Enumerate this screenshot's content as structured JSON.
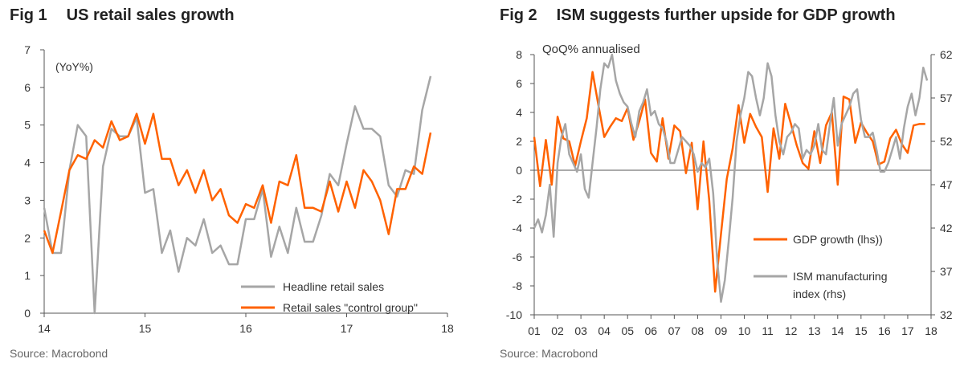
{
  "charts": [
    {
      "fig_number": "Fig 1",
      "title": "US retail sales growth",
      "source": "Source: Macrobond",
      "unit_label": "(YoY%)"
    },
    {
      "fig_number": "Fig 2",
      "title": "ISM suggests further upside for GDP growth",
      "source": "Source: Macrobond",
      "unit_label": "QoQ% annualised"
    }
  ],
  "chart_data": [
    {
      "type": "line",
      "title": "US retail sales growth",
      "ylabel": "(YoY%)",
      "x_range": [
        2014.0,
        2018.0
      ],
      "ylim": [
        0,
        7
      ],
      "y_ticks": [
        0,
        1,
        2,
        3,
        4,
        5,
        6,
        7
      ],
      "x_ticks": [
        {
          "x": 2014,
          "label": "14"
        },
        {
          "x": 2015,
          "label": "15"
        },
        {
          "x": 2016,
          "label": "16"
        },
        {
          "x": 2017,
          "label": "17"
        },
        {
          "x": 2018,
          "label": "18"
        }
      ],
      "grid": false,
      "legend": "bottom-right",
      "series": [
        {
          "name": "Headline retail sales",
          "color": "#a6a6a6",
          "x": [
            2014.0,
            2014.083,
            2014.167,
            2014.25,
            2014.333,
            2014.417,
            2014.5,
            2014.583,
            2014.667,
            2014.75,
            2014.833,
            2014.917,
            2015.0,
            2015.083,
            2015.167,
            2015.25,
            2015.333,
            2015.417,
            2015.5,
            2015.583,
            2015.667,
            2015.75,
            2015.833,
            2015.917,
            2016.0,
            2016.083,
            2016.167,
            2016.25,
            2016.333,
            2016.417,
            2016.5,
            2016.583,
            2016.667,
            2016.75,
            2016.833,
            2016.917,
            2017.0,
            2017.083,
            2017.167,
            2017.25,
            2017.333,
            2017.417,
            2017.5,
            2017.583,
            2017.667,
            2017.75,
            2017.833
          ],
          "values": [
            2.8,
            1.6,
            1.6,
            3.8,
            5.0,
            4.7,
            0.0,
            3.9,
            4.9,
            4.7,
            4.7,
            5.2,
            3.2,
            3.3,
            1.6,
            2.2,
            1.1,
            2.0,
            1.8,
            2.5,
            1.6,
            1.8,
            1.3,
            1.3,
            2.5,
            2.5,
            3.3,
            1.5,
            2.3,
            1.6,
            2.8,
            1.9,
            1.9,
            2.6,
            3.7,
            3.4,
            4.5,
            5.5,
            4.9,
            4.9,
            4.7,
            3.4,
            3.1,
            3.8,
            3.7,
            5.4,
            6.3
          ]
        },
        {
          "name": "Retail sales \"control group\"",
          "color": "#ff6200",
          "x": [
            2014.0,
            2014.083,
            2014.167,
            2014.25,
            2014.333,
            2014.417,
            2014.5,
            2014.583,
            2014.667,
            2014.75,
            2014.833,
            2014.917,
            2015.0,
            2015.083,
            2015.167,
            2015.25,
            2015.333,
            2015.417,
            2015.5,
            2015.583,
            2015.667,
            2015.75,
            2015.833,
            2015.917,
            2016.0,
            2016.083,
            2016.167,
            2016.25,
            2016.333,
            2016.417,
            2016.5,
            2016.583,
            2016.667,
            2016.75,
            2016.833,
            2016.917,
            2017.0,
            2017.083,
            2017.167,
            2017.25,
            2017.333,
            2017.417,
            2017.5,
            2017.583,
            2017.667,
            2017.75,
            2017.833
          ],
          "values": [
            2.2,
            1.6,
            2.7,
            3.8,
            4.2,
            4.1,
            4.6,
            4.4,
            5.1,
            4.6,
            4.7,
            5.3,
            4.5,
            5.3,
            4.1,
            4.1,
            3.4,
            3.8,
            3.2,
            3.8,
            3.0,
            3.3,
            2.6,
            2.4,
            2.9,
            2.8,
            3.4,
            2.4,
            3.5,
            3.4,
            4.2,
            2.8,
            2.8,
            2.7,
            3.5,
            2.7,
            3.5,
            2.8,
            3.8,
            3.5,
            3.0,
            2.1,
            3.3,
            3.3,
            3.9,
            3.7,
            4.8
          ]
        }
      ]
    },
    {
      "type": "line",
      "title": "ISM suggests further upside for GDP growth",
      "ylabel": "QoQ% annualised",
      "x_range": [
        2001.0,
        2018.0
      ],
      "ylim": [
        -10,
        8
      ],
      "y_ticks": [
        -10,
        -8,
        -6,
        -4,
        -2,
        0,
        2,
        4,
        6,
        8
      ],
      "y2lim": [
        32,
        62
      ],
      "y2_ticks": [
        32,
        37,
        42,
        47,
        52,
        57,
        62
      ],
      "x_ticks": [
        {
          "x": 2001,
          "label": "01"
        },
        {
          "x": 2002,
          "label": "02"
        },
        {
          "x": 2003,
          "label": "03"
        },
        {
          "x": 2004,
          "label": "04"
        },
        {
          "x": 2005,
          "label": "05"
        },
        {
          "x": 2006,
          "label": "06"
        },
        {
          "x": 2007,
          "label": "07"
        },
        {
          "x": 2008,
          "label": "08"
        },
        {
          "x": 2009,
          "label": "09"
        },
        {
          "x": 2010,
          "label": "10"
        },
        {
          "x": 2011,
          "label": "11"
        },
        {
          "x": 2012,
          "label": "12"
        },
        {
          "x": 2013,
          "label": "13"
        },
        {
          "x": 2014,
          "label": "14"
        },
        {
          "x": 2015,
          "label": "15"
        },
        {
          "x": 2016,
          "label": "16"
        },
        {
          "x": 2017,
          "label": "17"
        },
        {
          "x": 2018,
          "label": "18"
        }
      ],
      "grid": false,
      "legend": "right",
      "series": [
        {
          "name": "GDP growth (lhs))",
          "axis": "left",
          "color": "#ff6200",
          "x": [
            2001.0,
            2001.25,
            2001.5,
            2001.75,
            2002.0,
            2002.25,
            2002.5,
            2002.75,
            2003.0,
            2003.25,
            2003.5,
            2003.75,
            2004.0,
            2004.25,
            2004.5,
            2004.75,
            2005.0,
            2005.25,
            2005.5,
            2005.75,
            2006.0,
            2006.25,
            2006.5,
            2006.75,
            2007.0,
            2007.25,
            2007.5,
            2007.75,
            2008.0,
            2008.25,
            2008.5,
            2008.75,
            2009.0,
            2009.25,
            2009.5,
            2009.75,
            2010.0,
            2010.25,
            2010.5,
            2010.75,
            2011.0,
            2011.25,
            2011.5,
            2011.75,
            2012.0,
            2012.25,
            2012.5,
            2012.75,
            2013.0,
            2013.25,
            2013.5,
            2013.75,
            2014.0,
            2014.25,
            2014.5,
            2014.75,
            2015.0,
            2015.25,
            2015.5,
            2015.75,
            2016.0,
            2016.25,
            2016.5,
            2016.75,
            2017.0,
            2017.25,
            2017.5,
            2017.75
          ],
          "values": [
            2.3,
            -1.1,
            2.1,
            -1.0,
            3.7,
            2.2,
            2.0,
            0.3,
            2.0,
            3.6,
            6.8,
            4.5,
            2.3,
            3.0,
            3.6,
            3.4,
            4.3,
            2.1,
            3.4,
            4.9,
            1.2,
            0.6,
            3.6,
            0.8,
            3.1,
            2.7,
            -0.2,
            1.9,
            -2.7,
            2.0,
            -2.1,
            -8.4,
            -4.4,
            -0.6,
            1.5,
            4.5,
            1.9,
            3.9,
            3.0,
            2.3,
            -1.5,
            2.9,
            0.8,
            4.6,
            3.2,
            1.7,
            0.5,
            0.1,
            2.7,
            0.5,
            3.1,
            4.0,
            -1.0,
            5.1,
            4.9,
            1.9,
            3.3,
            2.6,
            2.0,
            0.4,
            0.6,
            2.2,
            2.8,
            1.8,
            1.2,
            3.1,
            3.2,
            3.2
          ]
        },
        {
          "name": "ISM manufacturing index (rhs)",
          "axis": "right",
          "color": "#a6a6a6",
          "x": [
            2001.0,
            2001.167,
            2001.333,
            2001.5,
            2001.667,
            2001.833,
            2002.0,
            2002.167,
            2002.333,
            2002.5,
            2002.667,
            2002.833,
            2003.0,
            2003.167,
            2003.333,
            2003.5,
            2003.667,
            2003.833,
            2004.0,
            2004.167,
            2004.333,
            2004.5,
            2004.667,
            2004.833,
            2005.0,
            2005.167,
            2005.333,
            2005.5,
            2005.667,
            2005.833,
            2006.0,
            2006.167,
            2006.333,
            2006.5,
            2006.667,
            2006.833,
            2007.0,
            2007.167,
            2007.333,
            2007.5,
            2007.667,
            2007.833,
            2008.0,
            2008.167,
            2008.333,
            2008.5,
            2008.667,
            2008.833,
            2009.0,
            2009.167,
            2009.333,
            2009.5,
            2009.667,
            2009.833,
            2010.0,
            2010.167,
            2010.333,
            2010.5,
            2010.667,
            2010.833,
            2011.0,
            2011.167,
            2011.333,
            2011.5,
            2011.667,
            2011.833,
            2012.0,
            2012.167,
            2012.333,
            2012.5,
            2012.667,
            2012.833,
            2013.0,
            2013.167,
            2013.333,
            2013.5,
            2013.667,
            2013.833,
            2014.0,
            2014.167,
            2014.333,
            2014.5,
            2014.667,
            2014.833,
            2015.0,
            2015.167,
            2015.333,
            2015.5,
            2015.667,
            2015.833,
            2016.0,
            2016.167,
            2016.333,
            2016.5,
            2016.667,
            2016.833,
            2017.0,
            2017.167,
            2017.333,
            2017.5,
            2017.667,
            2017.833
          ],
          "values": [
            42.0,
            43.0,
            41.5,
            43.5,
            47.0,
            41.0,
            49.5,
            52.5,
            54.0,
            50.5,
            49.5,
            48.5,
            50.5,
            46.5,
            45.5,
            49.5,
            53.5,
            58.0,
            61.0,
            60.5,
            62.0,
            59.0,
            57.5,
            56.5,
            56.0,
            54.0,
            52.5,
            55.5,
            56.5,
            58.0,
            55.0,
            55.5,
            54.0,
            53.5,
            52.0,
            49.5,
            49.5,
            51.0,
            52.5,
            52.0,
            51.5,
            50.5,
            48.5,
            49.5,
            49.0,
            50.0,
            46.0,
            38.5,
            33.5,
            36.0,
            40.5,
            45.5,
            52.0,
            55.0,
            57.0,
            60.0,
            59.5,
            57.0,
            55.0,
            57.0,
            61.0,
            59.5,
            55.0,
            52.0,
            50.5,
            52.5,
            53.0,
            54.0,
            53.5,
            50.0,
            51.0,
            50.5,
            51.5,
            54.0,
            51.0,
            50.5,
            54.0,
            57.0,
            51.5,
            54.0,
            55.0,
            56.0,
            57.5,
            58.0,
            54.5,
            52.5,
            52.5,
            53.0,
            51.0,
            48.5,
            48.5,
            49.5,
            51.0,
            52.5,
            50.0,
            53.5,
            56.0,
            57.5,
            55.0,
            57.0,
            60.5,
            59.0
          ]
        }
      ]
    }
  ]
}
